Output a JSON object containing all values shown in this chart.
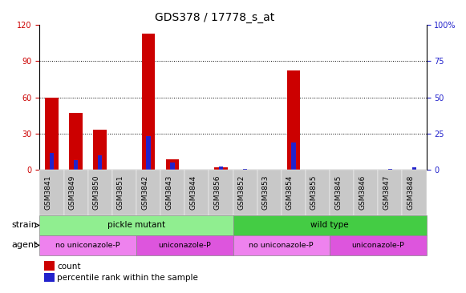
{
  "title": "GDS378 / 17778_s_at",
  "samples": [
    "GSM3841",
    "GSM3849",
    "GSM3850",
    "GSM3851",
    "GSM3842",
    "GSM3843",
    "GSM3844",
    "GSM3856",
    "GSM3852",
    "GSM3853",
    "GSM3854",
    "GSM3855",
    "GSM3845",
    "GSM3846",
    "GSM3847",
    "GSM3848"
  ],
  "count_values": [
    60,
    47,
    33,
    0,
    113,
    9,
    0,
    2,
    0,
    0,
    82,
    0,
    0,
    0,
    0,
    0
  ],
  "percentile_values": [
    14,
    8,
    12,
    0,
    28,
    6,
    0,
    3,
    1,
    0,
    23,
    0,
    0,
    0,
    1,
    2
  ],
  "strain_groups": [
    {
      "label": "pickle mutant",
      "start": 0,
      "end": 8,
      "color": "#90EE90"
    },
    {
      "label": "wild type",
      "start": 8,
      "end": 16,
      "color": "#44CC44"
    }
  ],
  "agent_groups": [
    {
      "label": "no uniconazole-P",
      "start": 0,
      "end": 4,
      "color": "#EE82EE"
    },
    {
      "label": "uniconazole-P",
      "start": 4,
      "end": 8,
      "color": "#DD55DD"
    },
    {
      "label": "no uniconazole-P",
      "start": 8,
      "end": 12,
      "color": "#EE82EE"
    },
    {
      "label": "uniconazole-P",
      "start": 12,
      "end": 16,
      "color": "#DD55DD"
    }
  ],
  "left_ylim": [
    0,
    120
  ],
  "right_ylim": [
    0,
    100
  ],
  "left_yticks": [
    0,
    30,
    60,
    90,
    120
  ],
  "right_yticks": [
    0,
    25,
    50,
    75,
    100
  ],
  "right_yticklabels": [
    "0",
    "25",
    "50",
    "75",
    "100%"
  ],
  "bar_color_red": "#CC0000",
  "bar_color_blue": "#2222CC",
  "left_tick_color": "#CC0000",
  "right_tick_color": "#2222CC",
  "title_fontsize": 10,
  "tick_label_fontsize": 7,
  "bar_width": 0.55,
  "blue_bar_width": 0.18
}
